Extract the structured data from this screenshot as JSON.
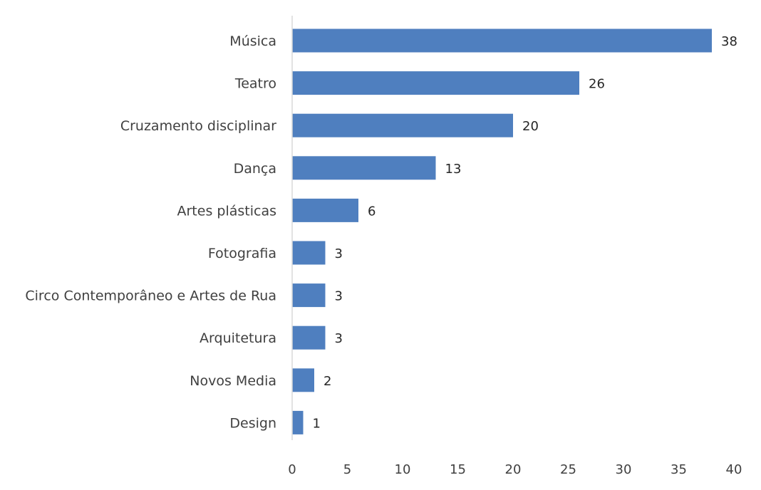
{
  "chart_data": {
    "type": "bar",
    "orientation": "horizontal",
    "title": "",
    "xlabel": "",
    "ylabel": "",
    "categories": [
      "Música",
      "Teatro",
      "Cruzamento disciplinar",
      "Dança",
      "Artes plásticas",
      "Fotografia",
      "Circo Contemporâneo e Artes de Rua",
      "Arquitetura",
      "Novos Media",
      "Design"
    ],
    "values": [
      38,
      26,
      20,
      13,
      6,
      3,
      3,
      3,
      2,
      1
    ],
    "data_labels": [
      "38",
      "26",
      "20",
      "13",
      "6",
      "3",
      "3",
      "3",
      "2",
      "1"
    ],
    "xlim": [
      0,
      40
    ],
    "x_ticks": [
      0,
      5,
      10,
      15,
      20,
      25,
      30,
      35,
      40
    ],
    "x_tick_labels": [
      "0",
      "5",
      "10",
      "15",
      "20",
      "25",
      "30",
      "35",
      "40"
    ],
    "grid": false,
    "legend": "none",
    "bar_color": "#4f7fbf",
    "axis_color": "#d9d9d9"
  }
}
